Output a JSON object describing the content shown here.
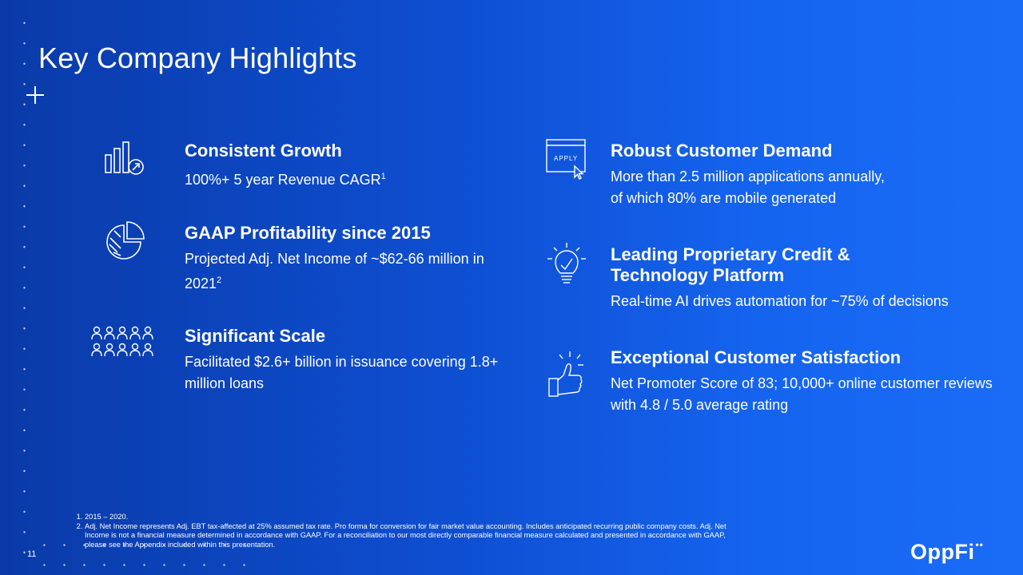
{
  "title": "Key Company Highlights",
  "highlights_left": [
    {
      "icon": "bar-chart-growth-icon",
      "heading": "Consistent Growth",
      "body": "100%+ 5 year Revenue CAGR",
      "sup": "1"
    },
    {
      "icon": "pie-chart-icon",
      "heading": "GAAP Profitability since 2015",
      "body": "Projected Adj. Net Income of ~$62-66 million in 2021",
      "sup": "2"
    },
    {
      "icon": "people-group-icon",
      "heading": "Significant Scale",
      "body": "Facilitated $2.6+ billion in issuance covering 1.8+ million loans"
    }
  ],
  "highlights_right": [
    {
      "icon": "apply-window-icon",
      "icon_label": "APPLY",
      "heading": "Robust Customer Demand",
      "body_line1": "More than 2.5 million applications annually,",
      "body_line2": "of which 80% are mobile generated"
    },
    {
      "icon": "lightbulb-check-icon",
      "heading_line1": "Leading Proprietary Credit &",
      "heading_line2": "Technology Platform",
      "body": "Real-time AI drives automation for ~75% of decisions"
    },
    {
      "icon": "thumbs-up-icon",
      "heading": "Exceptional Customer Satisfaction",
      "body": "Net Promoter Score of 83; 10,000+ online customer reviews with 4.8 / 5.0 average rating"
    }
  ],
  "footnotes": [
    "2015 – 2020.",
    "Adj. Net Income represents Adj. EBT tax-affected at 25% assumed tax rate. Pro forma for conversion for fair market value accounting. Includes anticipated recurring public company costs. Adj. Net Income is not a financial measure determined in accordance with GAAP. For a reconciliation to our most directly comparable financial measure calculated and presented in accordance with GAAP, please see the Appendix included within this presentation."
  ],
  "page_number": "11",
  "logo": {
    "text": "OppFi",
    "mark": "••"
  }
}
